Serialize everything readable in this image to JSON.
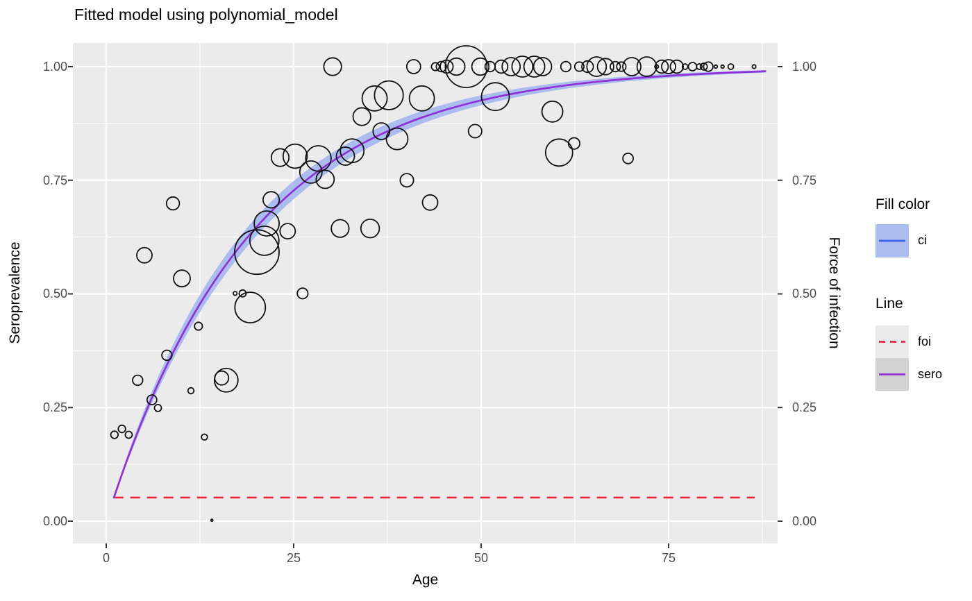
{
  "title": "Fitted model using polynomial_model",
  "colors": {
    "panel_bg": "#EBEBEB",
    "grid": "#FFFFFF",
    "tick_mark": "#333333",
    "tick_text": "#4D4D4D",
    "bubble_stroke": "#111111",
    "ribbon_fill": "#ABBDEF",
    "ci_key_line": "#3F63E8",
    "sero_line": "#9132D9",
    "foi_line": "#F1223C",
    "foi_key_bg": "#EBEBEB",
    "sero_key_bg": "#D2D2D2"
  },
  "axes": {
    "x": {
      "label": "Age",
      "ticks": [
        "0",
        "25",
        "50",
        "75"
      ],
      "tick_values": [
        0,
        25,
        50,
        75
      ],
      "minor_values": [
        12.5,
        37.5,
        62.5,
        87.5
      ],
      "range": [
        -4.44,
        89.54
      ]
    },
    "y_left": {
      "label": "Seroprevalence",
      "ticks": [
        "1.00",
        "0.75",
        "0.50",
        "0.25",
        "0.00"
      ],
      "tick_values": [
        1,
        0.75,
        0.5,
        0.25,
        0
      ],
      "minor_values": [
        0.875,
        0.625,
        0.375,
        0.125
      ],
      "range": [
        -0.0489,
        1.0519
      ]
    },
    "y_right": {
      "label": "Force of infection",
      "ticks": [
        "1.00",
        "0.75",
        "0.50",
        "0.25",
        "0.00"
      ],
      "tick_values": [
        1,
        0.75,
        0.5,
        0.25,
        0
      ]
    }
  },
  "legend": {
    "fill": {
      "title": "Fill color",
      "items": [
        {
          "label": "ci",
          "key": "blue line on periwinkle box"
        }
      ]
    },
    "line": {
      "title": "Line",
      "items": [
        {
          "label": "foi",
          "key": "red dashed line on light gray box"
        },
        {
          "label": "sero",
          "key": "purple solid line on gray box"
        }
      ]
    }
  },
  "chart_data": {
    "type": "scatter",
    "description": "Seroprevalence bubble scatter by age with fitted seroprevalence curve, confidence ribbon, and constant force-of-infection dashed line",
    "grid": "on, white major+minor gridlines on gray panel",
    "legend_position": "right",
    "xlabel": "Age",
    "ylabel_left": "Seroprevalence",
    "ylabel_right": "Force of infection",
    "xlim_data": [
      0,
      88
    ],
    "ylim_data": [
      0,
      1
    ],
    "sero_curve": {
      "name": "sero",
      "model": "p = 1 - exp(-foi * age)",
      "foi": 0.052,
      "age_start": 1,
      "age_end": 88.3
    },
    "ci_ribbon": {
      "name": "ci",
      "model": "p = 1 - exp(-foi * age)",
      "foi_lower": 0.0493,
      "foi_upper": 0.0552,
      "age_start": 1,
      "age_end": 88.3
    },
    "foi_line": {
      "name": "foi",
      "value": 0.052,
      "age_start": 1,
      "age_end": 86.5
    },
    "bubbles_note": "each point: [age, seroprevalence, radius_px]",
    "bubbles": [
      [
        1.1,
        0.19,
        5.3
      ],
      [
        2.1,
        0.203,
        5.3
      ],
      [
        3.0,
        0.19,
        5.0
      ],
      [
        4.2,
        0.31,
        7.3
      ],
      [
        5.1,
        0.585,
        11.0
      ],
      [
        6.1,
        0.267,
        7.0
      ],
      [
        6.9,
        0.249,
        5.0
      ],
      [
        8.1,
        0.365,
        7.3
      ],
      [
        8.9,
        0.699,
        9.3
      ],
      [
        10.1,
        0.534,
        12.0
      ],
      [
        11.3,
        0.287,
        4.3
      ],
      [
        12.3,
        0.429,
        5.7
      ],
      [
        13.1,
        0.185,
        4.3
      ],
      [
        14.1,
        0.002,
        1.5
      ],
      [
        15.4,
        0.315,
        10.0
      ],
      [
        16.0,
        0.31,
        17.0
      ],
      [
        17.2,
        0.501,
        2.7
      ],
      [
        18.2,
        0.501,
        5.0
      ],
      [
        19.2,
        0.47,
        22.0
      ],
      [
        20.1,
        0.592,
        32.0
      ],
      [
        21.1,
        0.617,
        21.0
      ],
      [
        21.4,
        0.655,
        18.0
      ],
      [
        22.0,
        0.707,
        11.7
      ],
      [
        23.2,
        0.8,
        12.7
      ],
      [
        24.2,
        0.638,
        11.0
      ],
      [
        25.2,
        0.803,
        17.3
      ],
      [
        26.2,
        0.501,
        7.7
      ],
      [
        27.3,
        0.768,
        16.0
      ],
      [
        28.3,
        0.798,
        18.3
      ],
      [
        29.2,
        0.752,
        13.0
      ],
      [
        30.2,
        1.0,
        12.7
      ],
      [
        31.2,
        0.644,
        12.7
      ],
      [
        31.9,
        0.803,
        13.0
      ],
      [
        32.8,
        0.815,
        17.0
      ],
      [
        34.1,
        0.89,
        12.7
      ],
      [
        35.2,
        0.644,
        13.3
      ],
      [
        35.8,
        0.93,
        18.0
      ],
      [
        36.7,
        0.858,
        12.0
      ],
      [
        37.7,
        0.937,
        20.7
      ],
      [
        38.8,
        0.841,
        15.5
      ],
      [
        40.1,
        0.75,
        9.6
      ],
      [
        41.0,
        1.0,
        10.0
      ],
      [
        42.1,
        0.93,
        18.0
      ],
      [
        43.2,
        0.701,
        11.0
      ],
      [
        43.9,
        1.0,
        5.7
      ],
      [
        44.7,
        1.0,
        7.3
      ],
      [
        45.4,
        1.0,
        9.3
      ],
      [
        46.7,
        1.0,
        12.3
      ],
      [
        48.0,
        1.0,
        30.0
      ],
      [
        49.2,
        0.858,
        9.6
      ],
      [
        49.9,
        1.0,
        12.3
      ],
      [
        51.2,
        1.0,
        7.3
      ],
      [
        51.9,
        0.934,
        20.0
      ],
      [
        52.7,
        1.0,
        9.3
      ],
      [
        54.0,
        1.0,
        13.0
      ],
      [
        55.5,
        1.0,
        15.0
      ],
      [
        57.1,
        1.0,
        15.0
      ],
      [
        58.2,
        1.0,
        13.0
      ],
      [
        59.5,
        0.901,
        15.0
      ],
      [
        60.4,
        0.811,
        19.5
      ],
      [
        61.3,
        1.0,
        7.3
      ],
      [
        62.4,
        0.831,
        8.2
      ],
      [
        63.1,
        1.0,
        6.7
      ],
      [
        64.2,
        1.0,
        8.3
      ],
      [
        65.4,
        1.0,
        14.0
      ],
      [
        66.6,
        1.0,
        11.7
      ],
      [
        67.9,
        1.0,
        7.3
      ],
      [
        68.7,
        1.0,
        6.7
      ],
      [
        69.6,
        0.798,
        7.5
      ],
      [
        70.1,
        1.0,
        13.0
      ],
      [
        72.1,
        1.0,
        14.0
      ],
      [
        73.4,
        1.0,
        2.7
      ],
      [
        74.1,
        1.0,
        9.3
      ],
      [
        75.0,
        1.0,
        10.0
      ],
      [
        76.1,
        1.0,
        9.3
      ],
      [
        77.2,
        1.0,
        4.0
      ],
      [
        78.2,
        1.0,
        6.0
      ],
      [
        79.1,
        1.0,
        4.0
      ],
      [
        79.7,
        1.0,
        5.0
      ],
      [
        80.3,
        1.0,
        6.7
      ],
      [
        81.3,
        1.0,
        2.3
      ],
      [
        82.2,
        1.0,
        2.3
      ],
      [
        83.3,
        1.0,
        4.0
      ],
      [
        86.4,
        1.0,
        2.7
      ]
    ]
  }
}
